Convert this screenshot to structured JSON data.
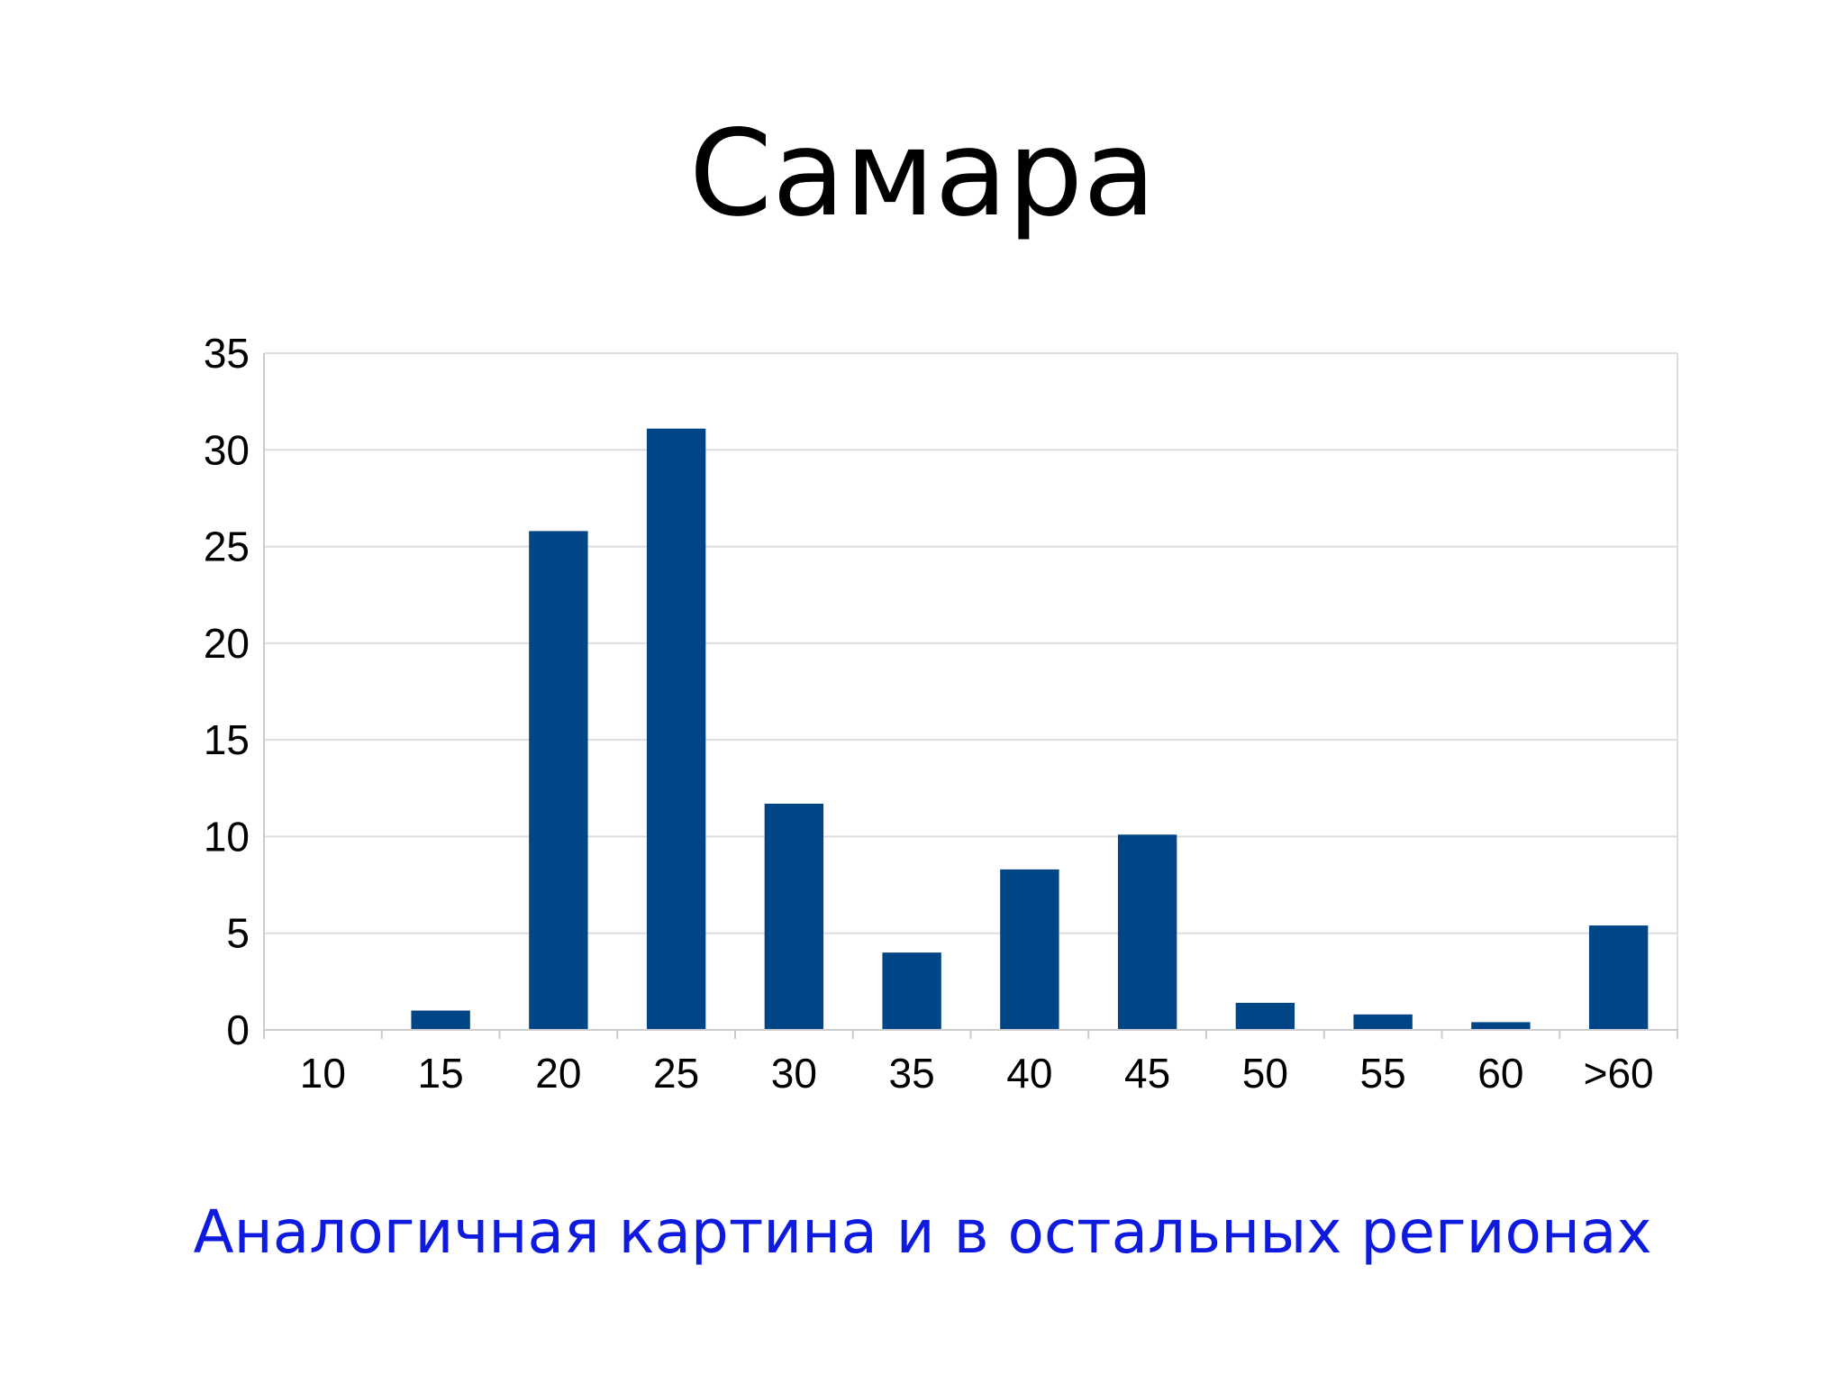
{
  "slide": {
    "title": "Самара",
    "caption": "Аналогичная картина и в остальных регионах",
    "caption_color": "#0f1adf"
  },
  "chart_data": {
    "type": "bar",
    "categories": [
      "10",
      "15",
      "20",
      "25",
      "30",
      "35",
      "40",
      "45",
      "50",
      "55",
      "60",
      ">60"
    ],
    "values": [
      0,
      1,
      25.8,
      31.1,
      11.7,
      4.0,
      8.3,
      10.1,
      1.4,
      0.8,
      0.4,
      5.4
    ],
    "y_ticks": [
      0,
      5,
      10,
      15,
      20,
      25,
      30,
      35
    ],
    "ylim": [
      0,
      35
    ],
    "grid": true,
    "legend": "none",
    "bar_color": "#004586",
    "grid_color": "#dddddd",
    "title": "",
    "xlabel": "",
    "ylabel": ""
  }
}
